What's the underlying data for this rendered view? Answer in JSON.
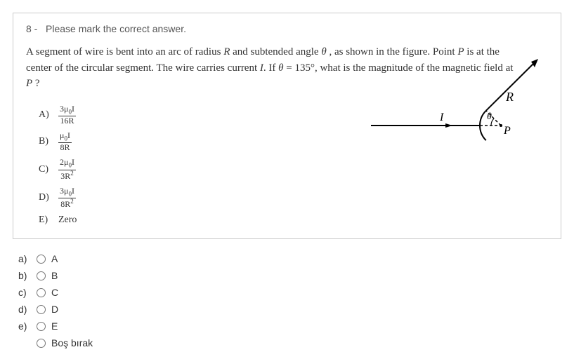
{
  "question": {
    "number": "8 -",
    "instruction": "Please mark the correct answer.",
    "text_parts": [
      "A segment of wire is bent into an arc of radius ",
      " and subtended angle ",
      " , as shown in the figure. Point ",
      " is at the center of the circular segment. The wire carries current ",
      ". If ",
      " = 135°, what is the magnitude of the magnetic field at ",
      " ?"
    ],
    "vars": {
      "R": "R",
      "theta": "θ",
      "P": "P",
      "I": "I"
    },
    "options": {
      "A": {
        "label": "A)",
        "num_html": "3μ<sub>0</sub>I",
        "den_html": "16R"
      },
      "B": {
        "label": "B)",
        "num_html": "μ<sub>0</sub>I",
        "den_html": "8R"
      },
      "C": {
        "label": "C)",
        "num_html": "2μ<sub>0</sub>I",
        "den_html": "3R<sup>2</sup>"
      },
      "D": {
        "label": "D)",
        "num_html": "3μ<sub>0</sub>I",
        "den_html": "8R<sup>2</sup>"
      },
      "E": {
        "label": "E)",
        "text": "Zero"
      }
    },
    "figure": {
      "stroke": "#000000",
      "P_label": "P",
      "R_label": "R",
      "I_label": "I",
      "theta_label": "θ"
    }
  },
  "answers": {
    "rows": [
      {
        "key": "a)",
        "val": "A"
      },
      {
        "key": "b)",
        "val": "B"
      },
      {
        "key": "c)",
        "val": "C"
      },
      {
        "key": "d)",
        "val": "D"
      },
      {
        "key": "e)",
        "val": "E"
      }
    ],
    "blank": "Boş bırak"
  },
  "colors": {
    "border": "#cccccc",
    "text": "#333333",
    "bg": "#ffffff"
  }
}
